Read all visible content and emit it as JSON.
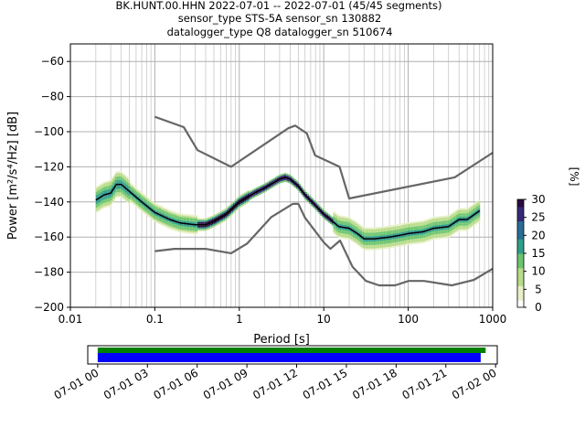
{
  "chart_data": [
    {
      "type": "heatmap",
      "title": "BK.HUNT.00.HHN   2022-07-01 -- 2022-07-01  (45/45 segments)",
      "subtitle_1": "sensor_type STS-5A sensor_sn 130882",
      "subtitle_2": "datalogger_type Q8 datalogger_sn 510674",
      "xlabel": "Period [s]",
      "ylabel": "Power [m²/s⁴/Hz] [dB]",
      "x_scale": "log",
      "xlim": [
        0.01,
        1000
      ],
      "ylim": [
        -200,
        -50
      ],
      "x_ticks": [
        0.01,
        0.1,
        1,
        10,
        100,
        1000
      ],
      "x_tick_labels": [
        "0.01",
        "0.1",
        "1",
        "10",
        "100",
        "1000"
      ],
      "y_ticks": [
        -200,
        -180,
        -160,
        -140,
        -120,
        -100,
        -80,
        -60
      ],
      "y_tick_labels": [
        "−200",
        "−180",
        "−160",
        "−140",
        "−120",
        "−100",
        "−80",
        "−60"
      ],
      "grid": true,
      "colorbar": {
        "label": "[%]",
        "min": 0,
        "max": 30,
        "ticks": [
          0,
          5,
          10,
          15,
          20,
          25,
          30
        ],
        "tick_labels": [
          "0",
          "5",
          "10",
          "15",
          "20",
          "25",
          "30"
        ],
        "colors": [
          "#ffffff",
          "#e8f0c8",
          "#b8dc8a",
          "#6cc56e",
          "#2e9f8a",
          "#2a6d96",
          "#352878",
          "#2b0a3d"
        ]
      },
      "series": [
        {
          "role": "high noise model",
          "color": "#666666",
          "x": [
            0.1,
            0.22,
            0.32,
            0.8,
            3.8,
            4.6,
            6.3,
            7.9,
            15.4,
            20,
            354.8,
            1000
          ],
          "y": [
            -91.5,
            -97.4,
            -110.5,
            -120,
            -98,
            -96.5,
            -101,
            -113.5,
            -120,
            -138,
            -126,
            -112
          ]
        },
        {
          "role": "low noise model",
          "color": "#666666",
          "x": [
            0.1,
            0.17,
            0.4,
            0.8,
            1.24,
            2.4,
            4.3,
            5,
            6,
            10,
            12,
            15.6,
            21.9,
            31.6,
            45,
            70,
            101,
            154,
            328,
            600,
            1000
          ],
          "y": [
            -168,
            -166.7,
            -166.7,
            -169.2,
            -163.7,
            -148.6,
            -141.1,
            -141.1,
            -149,
            -163,
            -166.7,
            -162,
            -177,
            -185,
            -187.5,
            -187.5,
            -185,
            -185,
            -187.5,
            -184.4,
            -178
          ]
        },
        {
          "role": "mode",
          "color": "#000000",
          "x": [
            0.02,
            0.025,
            0.03,
            0.035,
            0.04,
            0.05,
            0.07,
            0.1,
            0.15,
            0.2,
            0.3,
            0.4,
            0.5,
            0.7,
            1,
            1.5,
            2,
            3,
            3.5,
            4,
            5,
            6,
            8,
            10,
            12,
            15,
            20,
            25,
            30,
            40,
            60,
            80,
            100,
            150,
            200,
            300,
            400,
            500,
            700
          ],
          "y": [
            -139,
            -136,
            -135,
            -130,
            -130,
            -134,
            -140,
            -146,
            -150,
            -152,
            -153,
            -153,
            -151,
            -147,
            -140,
            -135,
            -132,
            -127,
            -126,
            -127,
            -131,
            -136,
            -142,
            -147,
            -150,
            -154,
            -155,
            -158,
            -161,
            -161,
            -160,
            -159,
            -158,
            -157,
            -155,
            -154,
            -150,
            -150,
            -145
          ]
        }
      ]
    },
    {
      "type": "timeline",
      "x_tick_labels": [
        "07-01 00",
        "07-01 03",
        "07-01 06",
        "07-01 09",
        "07-01 12",
        "07-01 15",
        "07-01 18",
        "07-01 21",
        "07-02 00"
      ],
      "xlim_hours": [
        -0.6,
        24.1
      ],
      "bars": [
        {
          "name": "",
          "color": "#008000",
          "start_hour": 0,
          "end_hour": 23.4
        },
        {
          "name": "",
          "color": "#0000ff",
          "start_hour": 0,
          "end_hour": 23.1
        }
      ]
    }
  ]
}
